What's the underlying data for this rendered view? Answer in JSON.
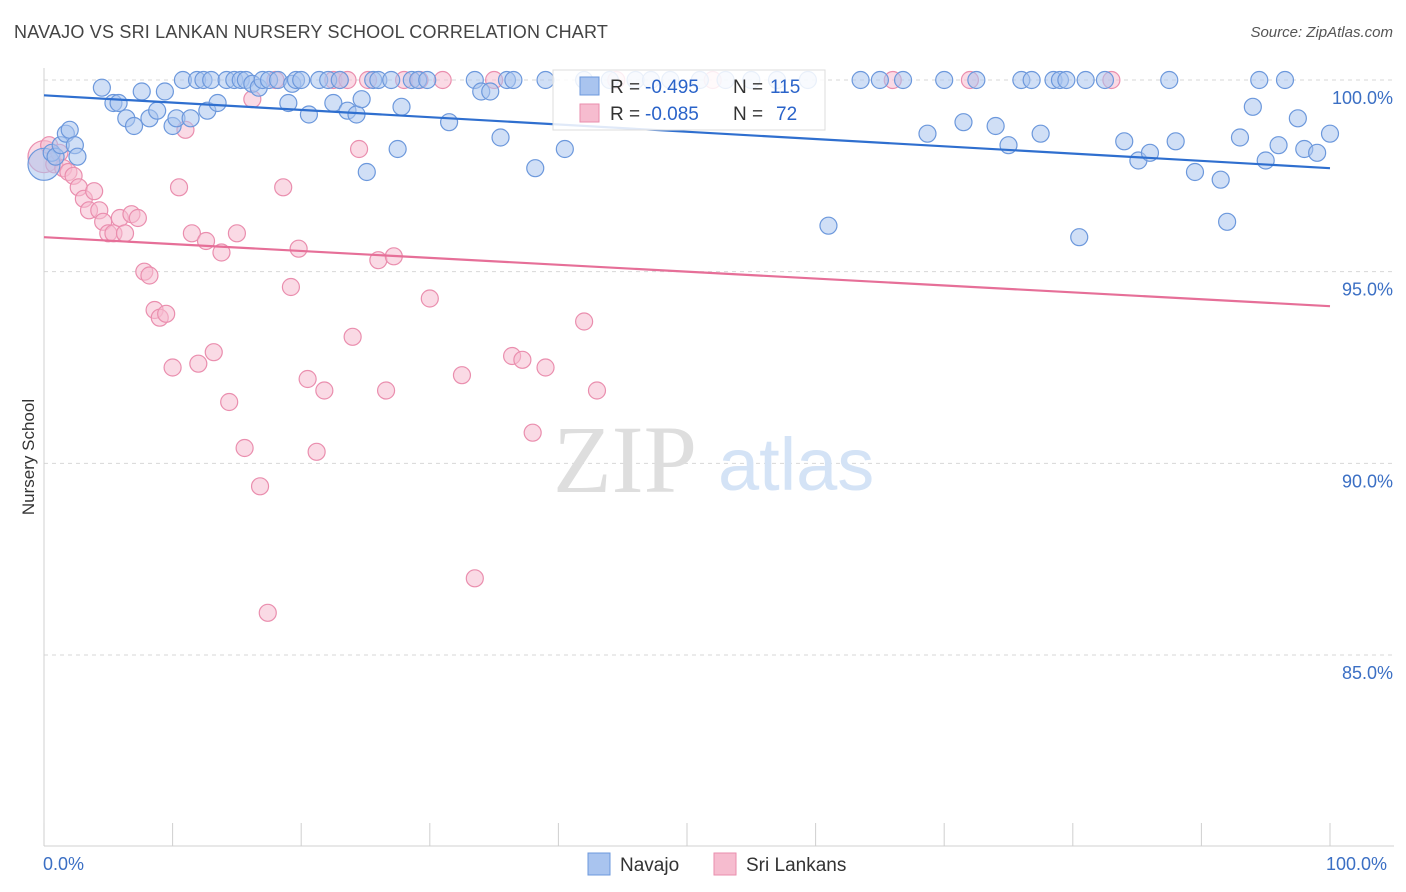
{
  "header": {
    "title": "NAVAJO VS SRI LANKAN NURSERY SCHOOL CORRELATION CHART",
    "source": "Source: ZipAtlas.com"
  },
  "watermark": {
    "zip": "ZIP",
    "atlas": "atlas"
  },
  "stats_legend": {
    "rows": [
      {
        "r_label": "R =",
        "r_value": "-0.495",
        "n_label": "N =",
        "n_value": "115",
        "color": "#8fb2ea"
      },
      {
        "r_label": "R =",
        "r_value": "-0.085",
        "n_label": "N =",
        "n_value": "72",
        "color": "#f2a9c1"
      }
    ]
  },
  "colors": {
    "navajo_fill": "#a9c4ef",
    "navajo_stroke": "#6c98dc",
    "navajo_line": "#2f6fcf",
    "srilankan_fill": "#f6bccf",
    "srilankan_stroke": "#ea8eae",
    "srilankan_line": "#e66f98",
    "grid": "#d7d7d7",
    "axis_text": "#3b6fc4"
  },
  "chart_data": {
    "type": "scatter",
    "xlabel": "",
    "ylabel": "Nursery School",
    "xlim": [
      0,
      100
    ],
    "ylim": [
      80.5,
      101
    ],
    "x_tick_labels": [
      "0.0%",
      "100.0%"
    ],
    "y_ticks": [
      {
        "value": 100,
        "label": "100.0%"
      },
      {
        "value": 95,
        "label": "95.0%"
      },
      {
        "value": 90,
        "label": "90.0%"
      },
      {
        "value": 85,
        "label": "85.0%"
      }
    ],
    "grid": true,
    "legend_position": "bottom",
    "series": [
      {
        "name": "Navajo",
        "trend": {
          "x": [
            0,
            100
          ],
          "y": [
            99.6,
            97.7
          ]
        },
        "points": [
          [
            0.0,
            97.8
          ],
          [
            0.6,
            98.1
          ],
          [
            0.9,
            98.0
          ],
          [
            1.3,
            98.3
          ],
          [
            1.7,
            98.6
          ],
          [
            2.0,
            98.7
          ],
          [
            2.4,
            98.3
          ],
          [
            2.6,
            98.0
          ],
          [
            4.5,
            99.8
          ],
          [
            5.4,
            99.4
          ],
          [
            5.8,
            99.4
          ],
          [
            6.4,
            99.0
          ],
          [
            7.0,
            98.8
          ],
          [
            7.6,
            99.7
          ],
          [
            8.2,
            99.0
          ],
          [
            8.8,
            99.2
          ],
          [
            9.4,
            99.7
          ],
          [
            10.0,
            98.8
          ],
          [
            10.3,
            99.0
          ],
          [
            10.8,
            100.0
          ],
          [
            11.4,
            99.0
          ],
          [
            11.9,
            100.0
          ],
          [
            12.4,
            100.0
          ],
          [
            12.7,
            99.2
          ],
          [
            13.0,
            100.0
          ],
          [
            13.5,
            99.4
          ],
          [
            14.2,
            100.0
          ],
          [
            14.8,
            100.0
          ],
          [
            15.3,
            100.0
          ],
          [
            15.7,
            100.0
          ],
          [
            16.2,
            99.9
          ],
          [
            16.7,
            99.8
          ],
          [
            17.0,
            100.0
          ],
          [
            17.5,
            100.0
          ],
          [
            18.2,
            100.0
          ],
          [
            19.0,
            99.4
          ],
          [
            19.3,
            99.9
          ],
          [
            19.6,
            100.0
          ],
          [
            20.0,
            100.0
          ],
          [
            20.6,
            99.1
          ],
          [
            21.4,
            100.0
          ],
          [
            22.1,
            100.0
          ],
          [
            22.5,
            99.4
          ],
          [
            23.0,
            100.0
          ],
          [
            23.6,
            99.2
          ],
          [
            24.3,
            99.1
          ],
          [
            24.7,
            99.5
          ],
          [
            25.1,
            97.6
          ],
          [
            25.6,
            100.0
          ],
          [
            26.0,
            100.0
          ],
          [
            27.0,
            100.0
          ],
          [
            27.5,
            98.2
          ],
          [
            27.8,
            99.3
          ],
          [
            28.6,
            100.0
          ],
          [
            29.1,
            100.0
          ],
          [
            29.8,
            100.0
          ],
          [
            31.5,
            98.9
          ],
          [
            33.5,
            100.0
          ],
          [
            34.0,
            99.7
          ],
          [
            34.7,
            99.7
          ],
          [
            35.5,
            98.5
          ],
          [
            36.0,
            100.0
          ],
          [
            36.5,
            100.0
          ],
          [
            38.2,
            97.7
          ],
          [
            39.0,
            100.0
          ],
          [
            40.5,
            98.2
          ],
          [
            42.0,
            100.0
          ],
          [
            44.0,
            100.0
          ],
          [
            46.0,
            100.0
          ],
          [
            47.2,
            100.0
          ],
          [
            48.7,
            100.0
          ],
          [
            51.0,
            100.0
          ],
          [
            53.0,
            100.0
          ],
          [
            55.0,
            100.0
          ],
          [
            57.0,
            100.0
          ],
          [
            59.4,
            100.0
          ],
          [
            61.0,
            96.2
          ],
          [
            63.5,
            100.0
          ],
          [
            65.0,
            100.0
          ],
          [
            66.8,
            100.0
          ],
          [
            68.7,
            98.6
          ],
          [
            70.0,
            100.0
          ],
          [
            71.5,
            98.9
          ],
          [
            72.5,
            100.0
          ],
          [
            74.0,
            98.8
          ],
          [
            75.0,
            98.3
          ],
          [
            76.0,
            100.0
          ],
          [
            76.8,
            100.0
          ],
          [
            77.5,
            98.6
          ],
          [
            78.5,
            100.0
          ],
          [
            79.0,
            100.0
          ],
          [
            79.5,
            100.0
          ],
          [
            80.5,
            95.9
          ],
          [
            81.0,
            100.0
          ],
          [
            82.5,
            100.0
          ],
          [
            84.0,
            98.4
          ],
          [
            85.1,
            97.9
          ],
          [
            86.0,
            98.1
          ],
          [
            87.5,
            100.0
          ],
          [
            88.0,
            98.4
          ],
          [
            89.5,
            97.6
          ],
          [
            91.5,
            97.4
          ],
          [
            92.0,
            96.3
          ],
          [
            93.0,
            98.5
          ],
          [
            94.0,
            99.3
          ],
          [
            94.5,
            100.0
          ],
          [
            95.0,
            97.9
          ],
          [
            96.0,
            98.3
          ],
          [
            96.5,
            100.0
          ],
          [
            97.5,
            99.0
          ],
          [
            98.0,
            98.2
          ],
          [
            99.0,
            98.1
          ],
          [
            100.0,
            98.6
          ]
        ]
      },
      {
        "name": "Sri Lankans",
        "trend": {
          "x": [
            0,
            100
          ],
          "y": [
            95.9,
            94.1
          ]
        },
        "points": [
          [
            0.0,
            98.0
          ],
          [
            0.4,
            98.3
          ],
          [
            0.8,
            97.8
          ],
          [
            1.2,
            98.1
          ],
          [
            1.5,
            97.7
          ],
          [
            1.9,
            97.6
          ],
          [
            2.3,
            97.5
          ],
          [
            2.7,
            97.2
          ],
          [
            3.1,
            96.9
          ],
          [
            3.5,
            96.6
          ],
          [
            3.9,
            97.1
          ],
          [
            4.3,
            96.6
          ],
          [
            4.6,
            96.3
          ],
          [
            5.0,
            96.0
          ],
          [
            5.4,
            96.0
          ],
          [
            5.9,
            96.4
          ],
          [
            6.3,
            96.0
          ],
          [
            6.8,
            96.5
          ],
          [
            7.3,
            96.4
          ],
          [
            7.8,
            95.0
          ],
          [
            8.2,
            94.9
          ],
          [
            8.6,
            94.0
          ],
          [
            9.0,
            93.8
          ],
          [
            9.5,
            93.9
          ],
          [
            10.0,
            92.5
          ],
          [
            10.5,
            97.2
          ],
          [
            11.0,
            98.7
          ],
          [
            11.5,
            96.0
          ],
          [
            12.0,
            92.6
          ],
          [
            12.6,
            95.8
          ],
          [
            13.2,
            92.9
          ],
          [
            13.8,
            95.5
          ],
          [
            14.4,
            91.6
          ],
          [
            15.0,
            96.0
          ],
          [
            15.6,
            90.4
          ],
          [
            16.2,
            99.5
          ],
          [
            16.8,
            89.4
          ],
          [
            17.4,
            86.1
          ],
          [
            18.0,
            100.0
          ],
          [
            18.6,
            97.2
          ],
          [
            19.2,
            94.6
          ],
          [
            19.8,
            95.6
          ],
          [
            20.5,
            92.2
          ],
          [
            21.2,
            90.3
          ],
          [
            21.8,
            91.9
          ],
          [
            22.5,
            100.0
          ],
          [
            23.0,
            100.0
          ],
          [
            23.6,
            100.0
          ],
          [
            24.0,
            93.3
          ],
          [
            24.5,
            98.2
          ],
          [
            25.2,
            100.0
          ],
          [
            26.0,
            95.3
          ],
          [
            26.6,
            91.9
          ],
          [
            27.2,
            95.4
          ],
          [
            28.0,
            100.0
          ],
          [
            29.2,
            100.0
          ],
          [
            30.0,
            94.3
          ],
          [
            31.0,
            100.0
          ],
          [
            32.5,
            92.3
          ],
          [
            33.5,
            87.0
          ],
          [
            35.0,
            100.0
          ],
          [
            36.4,
            92.8
          ],
          [
            37.2,
            92.7
          ],
          [
            38.0,
            90.8
          ],
          [
            39.0,
            92.5
          ],
          [
            42.0,
            93.7
          ],
          [
            43.0,
            91.9
          ],
          [
            44.5,
            100.0
          ],
          [
            52.0,
            100.0
          ],
          [
            66.0,
            100.0
          ],
          [
            72.0,
            100.0
          ],
          [
            83.0,
            100.0
          ]
        ]
      }
    ]
  },
  "bottom_legend": {
    "items": [
      {
        "label": "Navajo",
        "color": "#a9c4ef"
      },
      {
        "label": "Sri Lankans",
        "color": "#f6bccf"
      }
    ]
  }
}
